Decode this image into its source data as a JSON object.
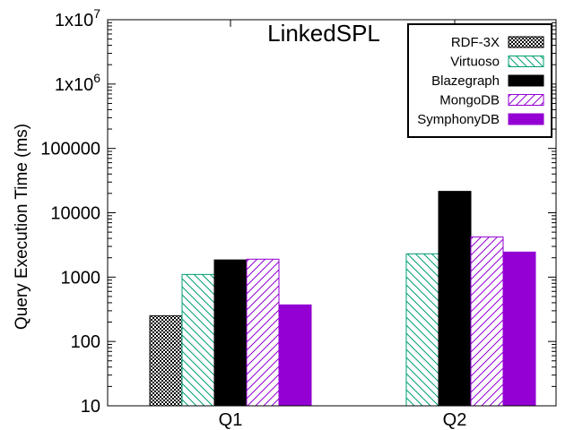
{
  "chart_data": {
    "type": "bar",
    "title": "LinkedSPL",
    "xlabel": "",
    "ylabel": "Query Execution Time (ms)",
    "yscale": "log",
    "ylim": [
      10,
      10000000
    ],
    "y_tick_values": [
      10,
      100,
      1000,
      10000,
      100000,
      1000000,
      10000000
    ],
    "y_tick_labels": [
      {
        "text": "10"
      },
      {
        "text": "100"
      },
      {
        "text": "1000"
      },
      {
        "text": "10000"
      },
      {
        "text": "100000"
      },
      {
        "base": "1x10",
        "exp": "6"
      },
      {
        "base": "1x10",
        "exp": "7"
      }
    ],
    "categories": [
      "Q1",
      "Q2"
    ],
    "legend_position": "top-right",
    "grid": false,
    "series": [
      {
        "name": "RDF-3X",
        "pattern": "checker",
        "color": "#000000",
        "values": [
          250,
          null
        ]
      },
      {
        "name": "Virtuoso",
        "pattern": "hatch-back",
        "color": "#009e73",
        "values": [
          1100,
          2300
        ]
      },
      {
        "name": "Blazegraph",
        "pattern": "solid",
        "color": "#000000",
        "values": [
          1850,
          21500
        ]
      },
      {
        "name": "MongoDB",
        "pattern": "hatch-forward",
        "color": "#9400d3",
        "values": [
          1900,
          4200
        ]
      },
      {
        "name": "SymphonyDB",
        "pattern": "solid",
        "color": "#9400d3",
        "values": [
          370,
          2450
        ]
      }
    ]
  }
}
